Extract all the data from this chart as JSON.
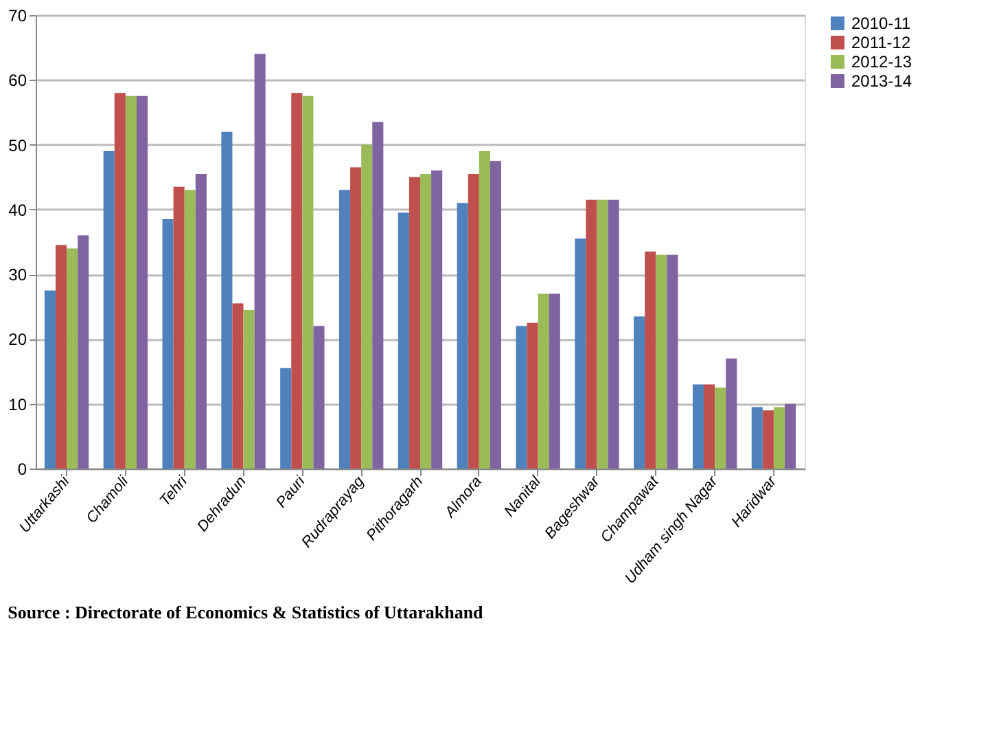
{
  "chart_data": {
    "type": "bar",
    "categories": [
      "Uttarkashi",
      "Chamoli",
      "Tehri",
      "Dehradun",
      "Pauri",
      "Rudraprayag",
      "Pithoragarh",
      "Almora",
      "Nanital",
      "Bageshwar",
      "Champawat",
      "Udham singh Nagar",
      "Haridwar"
    ],
    "series": [
      {
        "name": "2010-11",
        "color": "#4f81bd",
        "values": [
          27.5,
          49,
          38.5,
          52,
          15.5,
          43,
          39.5,
          41,
          22,
          35.5,
          23.5,
          13,
          9.5
        ]
      },
      {
        "name": "2011-12",
        "color": "#c0504d",
        "values": [
          34.5,
          58,
          43.5,
          25.5,
          58,
          46.5,
          45,
          45.5,
          22.5,
          41.5,
          33.5,
          13,
          9
        ]
      },
      {
        "name": "2012-13",
        "color": "#9bbb59",
        "values": [
          34,
          57.5,
          43,
          24.5,
          57.5,
          50,
          45.5,
          49,
          27,
          41.5,
          33,
          12.5,
          9.5
        ]
      },
      {
        "name": "2013-14",
        "color": "#8064a2",
        "values": [
          36,
          57.5,
          45.5,
          64,
          22,
          53.5,
          46,
          47.5,
          27,
          41.5,
          33,
          17,
          10
        ]
      }
    ],
    "ylim": [
      0,
      70
    ],
    "yticks": [
      0,
      10,
      20,
      30,
      40,
      50,
      60,
      70
    ],
    "grid": "y",
    "legend": "right",
    "annotations": [
      "Source : Directorate of Economics & Statistics of Uttarakhand"
    ]
  }
}
